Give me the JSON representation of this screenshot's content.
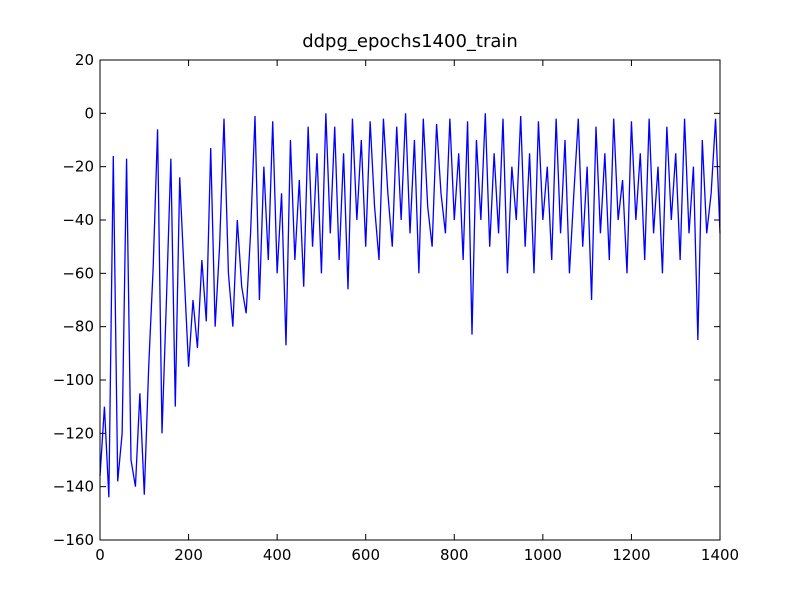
{
  "chart_data": {
    "type": "line",
    "title": "ddpg_epochs1400_train",
    "x": [
      0,
      10,
      20,
      30,
      40,
      50,
      60,
      70,
      80,
      90,
      100,
      110,
      120,
      130,
      140,
      150,
      160,
      170,
      180,
      190,
      200,
      210,
      220,
      230,
      240,
      250,
      260,
      270,
      280,
      290,
      300,
      310,
      320,
      330,
      340,
      350,
      360,
      370,
      380,
      390,
      400,
      410,
      420,
      430,
      440,
      450,
      460,
      470,
      480,
      490,
      500,
      510,
      520,
      530,
      540,
      550,
      560,
      570,
      580,
      590,
      600,
      610,
      620,
      630,
      640,
      650,
      660,
      670,
      680,
      690,
      700,
      710,
      720,
      730,
      740,
      750,
      760,
      770,
      780,
      790,
      800,
      810,
      820,
      830,
      840,
      850,
      860,
      870,
      880,
      890,
      900,
      910,
      920,
      930,
      940,
      950,
      960,
      970,
      980,
      990,
      1000,
      1010,
      1020,
      1030,
      1040,
      1050,
      1060,
      1070,
      1080,
      1090,
      1100,
      1110,
      1120,
      1130,
      1140,
      1150,
      1160,
      1170,
      1180,
      1190,
      1200,
      1210,
      1220,
      1230,
      1240,
      1250,
      1260,
      1270,
      1280,
      1290,
      1300,
      1310,
      1320,
      1330,
      1340,
      1350,
      1360,
      1370,
      1380,
      1390,
      1400
    ],
    "values": [
      -136,
      -110,
      -144,
      -16,
      -138,
      -120,
      -17,
      -130,
      -140,
      -105,
      -143,
      -95,
      -58,
      -6,
      -120,
      -70,
      -17,
      -110,
      -24,
      -60,
      -95,
      -70,
      -88,
      -55,
      -78,
      -13,
      -80,
      -50,
      -2,
      -60,
      -80,
      -40,
      -65,
      -75,
      -45,
      -1,
      -70,
      -20,
      -55,
      -3,
      -60,
      -30,
      -87,
      -10,
      -55,
      -25,
      -65,
      -5,
      -50,
      -15,
      -60,
      0,
      -45,
      -5,
      -55,
      -15,
      -66,
      -2,
      -40,
      -10,
      -50,
      -3,
      -35,
      -55,
      -2,
      -30,
      -50,
      -5,
      -40,
      0,
      -45,
      -10,
      -60,
      -2,
      -35,
      -50,
      -4,
      -30,
      -45,
      -2,
      -40,
      -15,
      -55,
      -3,
      -83,
      -10,
      -40,
      0,
      -50,
      -15,
      -45,
      -2,
      -60,
      -20,
      -40,
      -1,
      -50,
      -15,
      -60,
      -3,
      -40,
      -20,
      -55,
      -2,
      -45,
      -10,
      -60,
      -30,
      -2,
      -50,
      -20,
      -70,
      -5,
      -45,
      -15,
      -55,
      -2,
      -40,
      -25,
      -60,
      -3,
      -40,
      -15,
      -55,
      -2,
      -45,
      -20,
      -60,
      -5,
      -40,
      -15,
      -55,
      -2,
      -45,
      -20,
      -85,
      -10,
      -45,
      -30,
      -2,
      -45
    ],
    "color": "#0000ff",
    "xlim": [
      0,
      1400
    ],
    "xticks": [
      0,
      200,
      400,
      600,
      800,
      1000,
      1200,
      1400
    ],
    "ylim": [
      -160,
      20
    ],
    "yticks": [
      {
        "value": -160,
        "label": "−160"
      },
      {
        "value": -140,
        "label": "−140"
      },
      {
        "value": -120,
        "label": "−120"
      },
      {
        "value": -100,
        "label": "−100"
      },
      {
        "value": -80,
        "label": "−80"
      },
      {
        "value": -60,
        "label": "−60"
      },
      {
        "value": -40,
        "label": "−40"
      },
      {
        "value": -20,
        "label": "−20"
      },
      0,
      20
    ]
  }
}
